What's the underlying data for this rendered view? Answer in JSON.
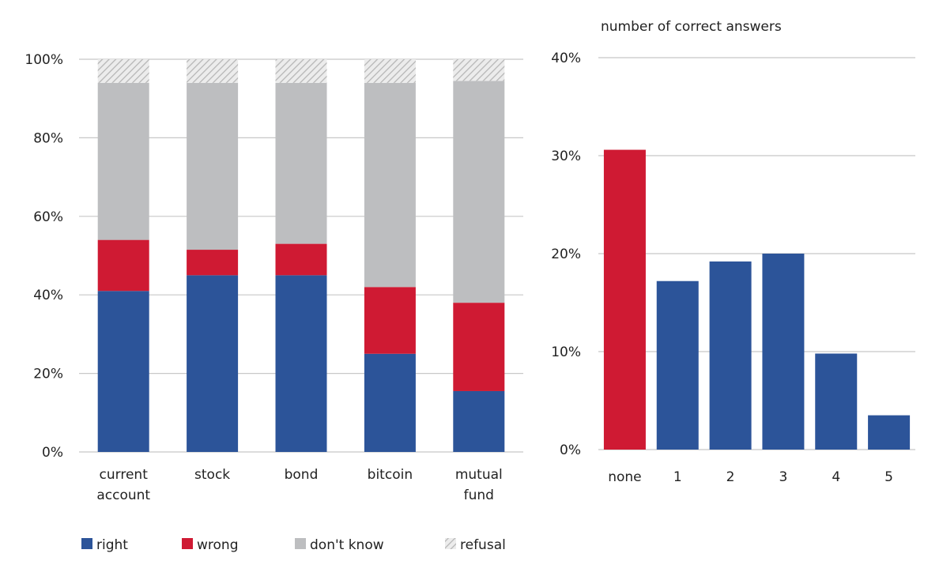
{
  "colors": {
    "right": "#2c5499",
    "wrong": "#cf1a33",
    "dont_know": "#bdbec0",
    "refusal_bg": "#ececec",
    "refusal_hatch": "#b5b5b5",
    "grid": "#c8c8c8"
  },
  "chart_data": [
    {
      "type": "bar",
      "stacked": true,
      "title": "",
      "ylim": [
        0,
        100
      ],
      "yticks": [
        "0%",
        "20%",
        "40%",
        "60%",
        "80%",
        "100%"
      ],
      "ytick_values": [
        0,
        20,
        40,
        60,
        80,
        100
      ],
      "categories": [
        [
          "current",
          "account"
        ],
        [
          "stock"
        ],
        [
          "bond"
        ],
        [
          "bitcoin"
        ],
        [
          "mutual",
          "fund"
        ]
      ],
      "series": [
        {
          "key": "right",
          "name": "right",
          "values": [
            41,
            45,
            45,
            25,
            15.5
          ]
        },
        {
          "key": "wrong",
          "name": "wrong",
          "values": [
            13,
            6.5,
            8,
            17,
            22.5
          ]
        },
        {
          "key": "dont_know",
          "name": "don't know",
          "values": [
            40,
            42.5,
            41,
            52,
            56.5
          ]
        },
        {
          "key": "refusal",
          "name": "refusal",
          "values": [
            6,
            6,
            6,
            6,
            5.5
          ]
        }
      ],
      "legend": "bottom",
      "grid": true
    },
    {
      "type": "bar",
      "title": "number of correct answers",
      "ylim": [
        0,
        40
      ],
      "yticks": [
        "0%",
        "10%",
        "20%",
        "30%",
        "40%"
      ],
      "ytick_values": [
        0,
        10,
        20,
        30,
        40
      ],
      "categories": [
        "none",
        "1",
        "2",
        "3",
        "4",
        "5"
      ],
      "values": [
        30.6,
        17.2,
        19.2,
        20,
        9.8,
        3.5
      ],
      "highlight_index": 0,
      "grid": true
    }
  ]
}
